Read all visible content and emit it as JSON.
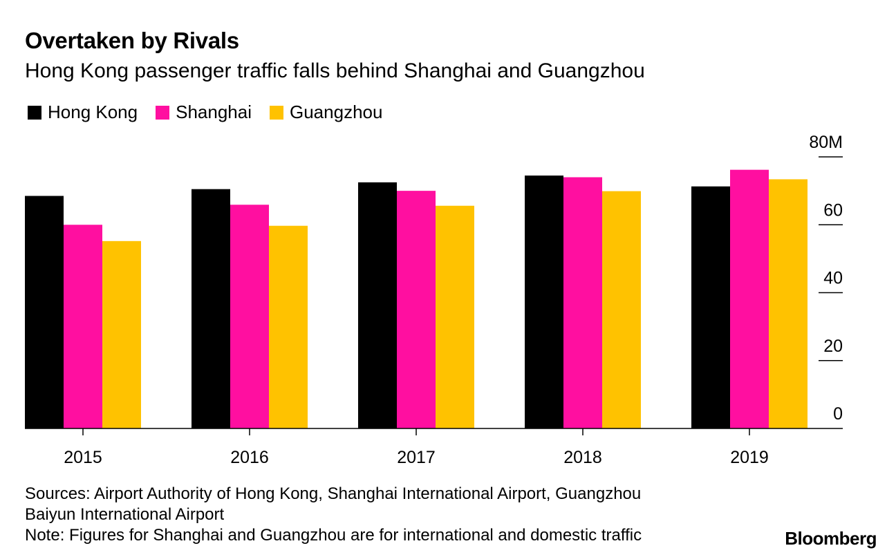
{
  "header": {
    "title": "Overtaken by Rivals",
    "subtitle": "Hong Kong passenger traffic falls behind Shanghai and Guangzhou"
  },
  "legend": [
    {
      "label": "Hong Kong",
      "color": "#000000"
    },
    {
      "label": "Shanghai",
      "color": "#ff0fa0"
    },
    {
      "label": "Guangzhou",
      "color": "#ffc200"
    }
  ],
  "chart_data": {
    "type": "bar",
    "title": "Overtaken by Rivals",
    "subtitle": "Hong Kong passenger traffic falls behind Shanghai and Guangzhou",
    "categories": [
      "2015",
      "2016",
      "2017",
      "2018",
      "2019"
    ],
    "series": [
      {
        "name": "Hong Kong",
        "color": "#000000",
        "values": [
          68.5,
          70.5,
          72.5,
          74.5,
          71.3
        ]
      },
      {
        "name": "Shanghai",
        "color": "#ff0fa0",
        "values": [
          60.0,
          65.9,
          70.0,
          74.0,
          76.2
        ]
      },
      {
        "name": "Guangzhou",
        "color": "#ffc200",
        "values": [
          55.2,
          59.7,
          65.6,
          69.9,
          73.4
        ]
      }
    ],
    "ylim": [
      0,
      80
    ],
    "yticks": [
      0,
      20,
      40,
      60,
      80
    ],
    "ytick_labels": [
      "0",
      "20",
      "40",
      "60",
      "80M"
    ],
    "y_axis_position": "right",
    "grid": false,
    "legend_position": "top-left",
    "xlabel": "",
    "ylabel": ""
  },
  "footer": {
    "sources_line1": "Sources: Airport Authority of Hong Kong, Shanghai International Airport, Guangzhou",
    "sources_line2": "Baiyun International Airport",
    "note": "Note: Figures for Shanghai and Guangzhou are for international and domestic traffic"
  },
  "brand": "Bloomberg"
}
